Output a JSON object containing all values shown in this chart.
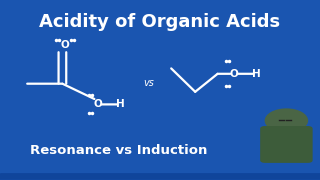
{
  "title": "Acidity of Organic Acids",
  "subtitle": "Resonance vs Induction",
  "vs_text": "vs",
  "bg_color": "#1a55b0",
  "text_color": "#ffffff",
  "title_fontsize": 13,
  "subtitle_fontsize": 9.5,
  "person_color": "#4a6545"
}
